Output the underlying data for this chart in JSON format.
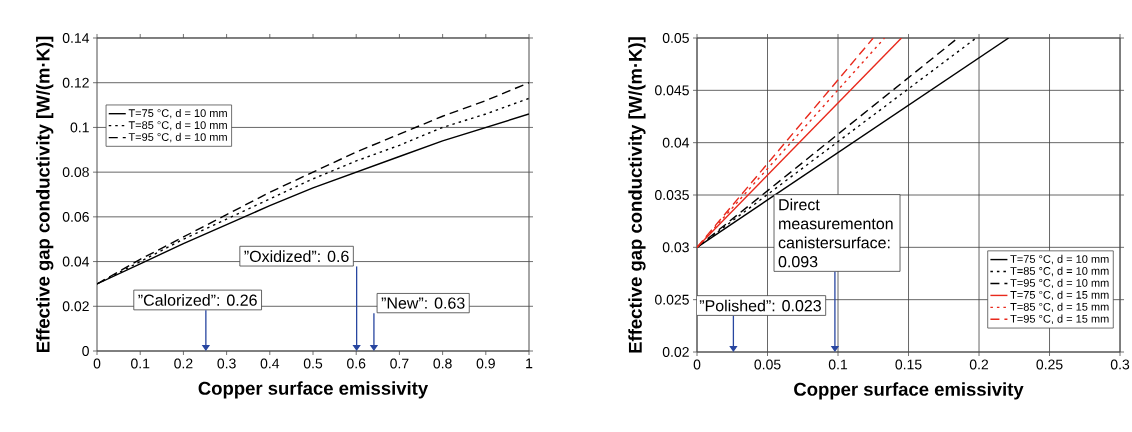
{
  "chart_data": [
    {
      "type": "line",
      "xlabel": "Copper surface emissivity",
      "ylabel": "Effective gap conductivity [W/(m·K)]",
      "x": [
        0,
        0.1,
        0.2,
        0.3,
        0.4,
        0.5,
        0.6,
        0.7,
        0.8,
        0.9,
        1
      ],
      "series": [
        {
          "name": "T=75 °C, d = 10 mm",
          "color": "#000000",
          "line_style": "solid",
          "values": [
            0.03,
            0.039,
            0.048,
            0.0565,
            0.065,
            0.073,
            0.08,
            0.087,
            0.094,
            0.1,
            0.106
          ]
        },
        {
          "name": "T=85 °C, d = 10 mm",
          "color": "#000000",
          "line_style": "dotted",
          "values": [
            0.03,
            0.04,
            0.05,
            0.059,
            0.068,
            0.077,
            0.085,
            0.092,
            0.1,
            0.106,
            0.113
          ]
        },
        {
          "name": "T=95 °C, d = 10 mm",
          "color": "#000000",
          "line_style": "dashed",
          "values": [
            0.03,
            0.041,
            0.051,
            0.061,
            0.071,
            0.08,
            0.089,
            0.097,
            0.105,
            0.112,
            0.12
          ]
        }
      ],
      "xlim": [
        0,
        1
      ],
      "xticks": [
        0,
        0.1,
        0.2,
        0.3,
        0.4,
        0.5,
        0.6,
        0.7,
        0.8,
        0.9,
        1
      ],
      "ylim": [
        0,
        0.14
      ],
      "yticks": [
        0,
        0.02,
        0.04,
        0.06,
        0.08,
        0.1,
        0.12,
        0.14
      ],
      "grid": "y",
      "legend": "left",
      "marker": "none",
      "annotations": [
        "”Calorized”: 0.26",
        "”Oxidized”: 0.6",
        "”New”: 0.63"
      ]
    },
    {
      "type": "line",
      "xlabel": "Copper surface emissivity",
      "ylabel": "Effective gap conductivity [W/(m·K)]",
      "series": [
        {
          "name": "T=75 °C, d = 10 mm",
          "color": "#000000",
          "line_style": "solid",
          "x": [
            0,
            0.221
          ],
          "values": [
            0.03,
            0.05
          ]
        },
        {
          "name": "T=85 °C, d = 10 mm",
          "color": "#000000",
          "line_style": "dotted",
          "x": [
            0,
            0.198
          ],
          "values": [
            0.03,
            0.05
          ]
        },
        {
          "name": "T=95 °C, d = 10 mm",
          "color": "#000000",
          "line_style": "dashed",
          "x": [
            0,
            0.185
          ],
          "values": [
            0.03,
            0.05
          ]
        },
        {
          "name": "T=75 °C, d = 15 mm",
          "color": "#e8291c",
          "line_style": "solid",
          "x": [
            0,
            0.145
          ],
          "values": [
            0.03,
            0.05
          ]
        },
        {
          "name": "T=85 °C, d = 15 mm",
          "color": "#e8291c",
          "line_style": "dotted",
          "x": [
            0,
            0.133
          ],
          "values": [
            0.03,
            0.05
          ]
        },
        {
          "name": "T=95 °C, d = 15 mm",
          "color": "#e8291c",
          "line_style": "dashed",
          "x": [
            0,
            0.125
          ],
          "values": [
            0.03,
            0.05
          ]
        }
      ],
      "xlim": [
        0,
        0.3
      ],
      "xticks": [
        0,
        0.05,
        0.1,
        0.15,
        0.2,
        0.25,
        0.3
      ],
      "ylim": [
        0.02,
        0.05
      ],
      "yticks": [
        0.02,
        0.025,
        0.03,
        0.035,
        0.04,
        0.045,
        0.05
      ],
      "grid": true,
      "legend": "bottom right",
      "marker": "none",
      "annotations": [
        "”Polished”: 0.023",
        "Direct measurementon canistersurface: 0.093"
      ]
    }
  ]
}
